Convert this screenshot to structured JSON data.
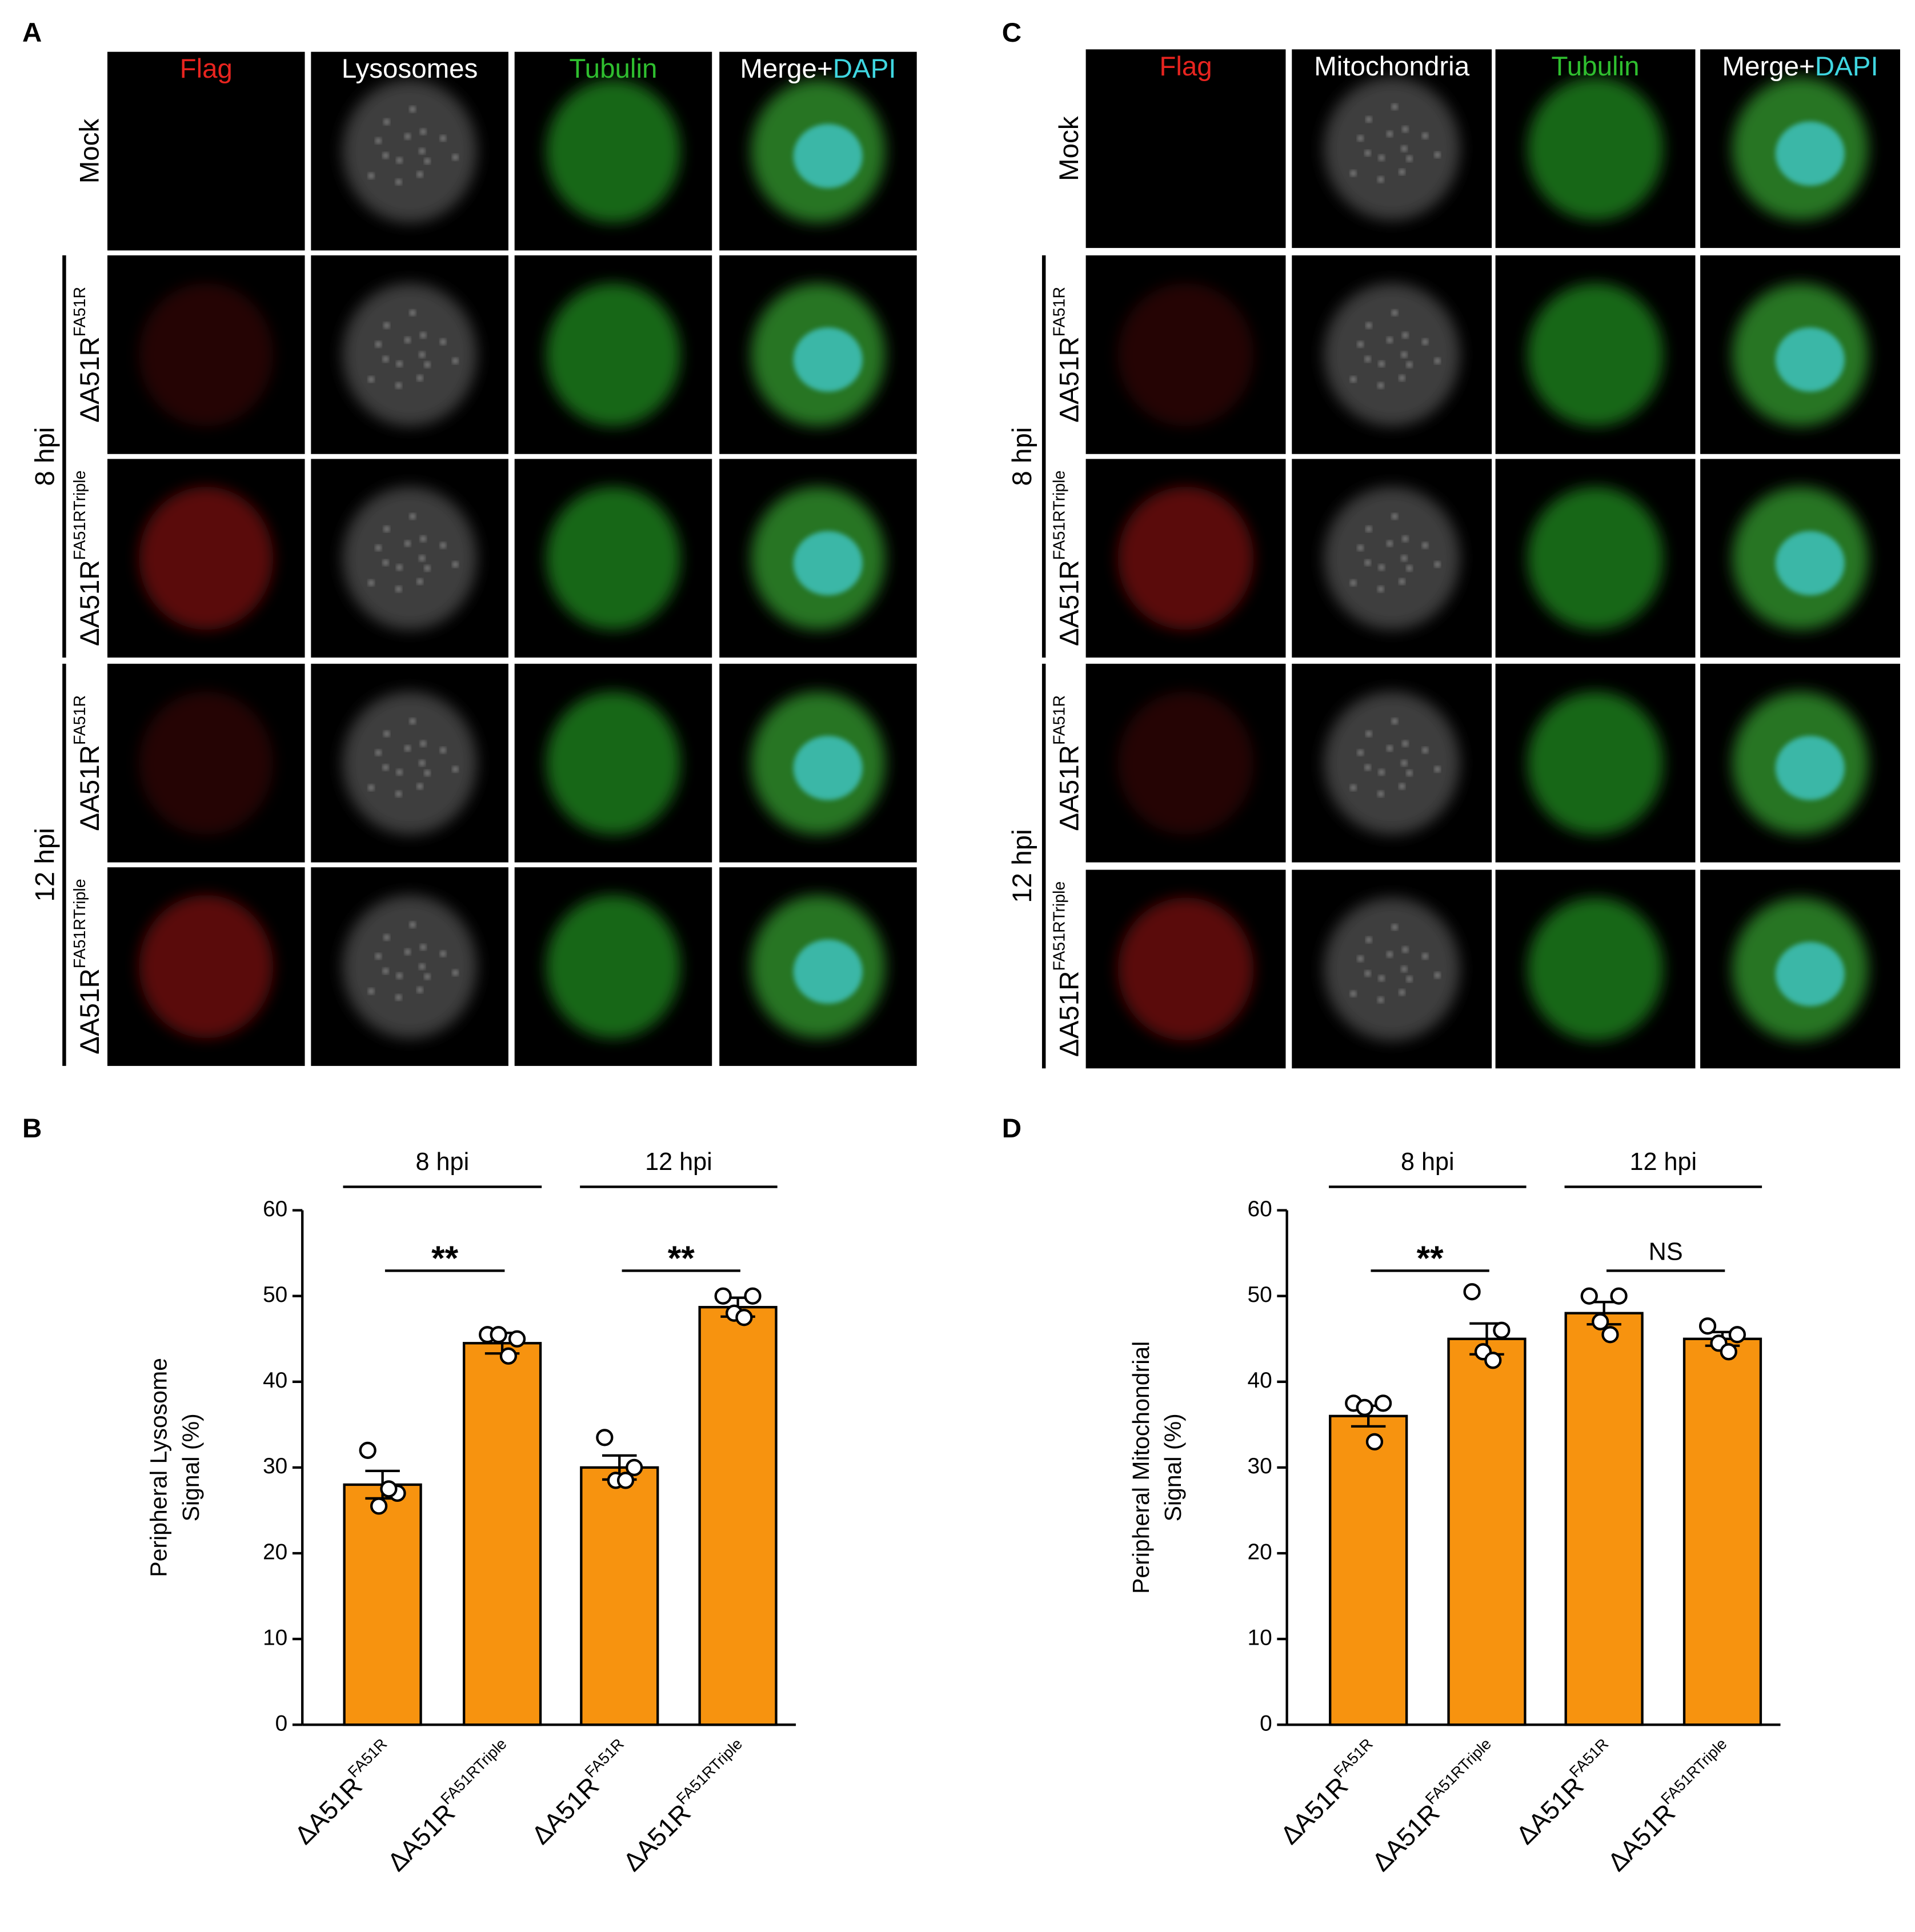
{
  "panel_labels": [
    "A",
    "B",
    "C",
    "D"
  ],
  "image_panels": [
    {
      "columns": [
        "Flag",
        "Lysosomes",
        "Tubulin",
        "Merge+"
      ],
      "merge_suffix": "DAPI",
      "column_colors": [
        "#e8241f",
        "#ffffff",
        "#2fbf2f",
        "#ffffff"
      ],
      "merge_suffix_color": "#3fd6e0",
      "rows": [
        "Mock",
        {
          "base": "ΔA51R",
          "sup": "FA51R"
        },
        {
          "base": "ΔA51R",
          "sup": "FA51RTriple"
        },
        {
          "base": "ΔA51R",
          "sup": "FA51R"
        },
        {
          "base": "ΔA51R",
          "sup": "FA51RTriple"
        }
      ],
      "groups": [
        "8 hpi",
        "12 hpi"
      ]
    },
    {
      "columns": [
        "Flag",
        "Mitochondria",
        "Tubulin",
        "Merge+"
      ],
      "merge_suffix": "DAPI",
      "column_colors": [
        "#e8241f",
        "#ffffff",
        "#2fbf2f",
        "#ffffff"
      ],
      "merge_suffix_color": "#3fd6e0",
      "rows": [
        "Mock",
        {
          "base": "ΔA51R",
          "sup": "FA51R"
        },
        {
          "base": "ΔA51R",
          "sup": "FA51RTriple"
        },
        {
          "base": "ΔA51R",
          "sup": "FA51R"
        },
        {
          "base": "ΔA51R",
          "sup": "FA51RTriple"
        }
      ],
      "groups": [
        "8 hpi",
        "12 hpi"
      ]
    }
  ],
  "chart_data": [
    {
      "type": "bar",
      "y_label": [
        "Peripheral Lysosome",
        "Signal (%)"
      ],
      "categories": [
        {
          "base": "ΔA51R",
          "sup": "FA51R"
        },
        {
          "base": "ΔA51R",
          "sup": "FA51RTriple"
        },
        {
          "base": "ΔA51R",
          "sup": "FA51R"
        },
        {
          "base": "ΔA51R",
          "sup": "FA51RTriple"
        }
      ],
      "values": [
        28,
        44.5,
        30,
        48.7
      ],
      "errors": [
        1.6,
        1.2,
        1.4,
        1.1
      ],
      "points": [
        [
          32,
          27,
          25.5,
          27.5
        ],
        [
          45.5,
          45,
          45.5,
          43
        ],
        [
          33.5,
          30,
          28.5,
          28.5
        ],
        [
          50,
          50,
          48,
          47.5
        ]
      ],
      "color": "#f7930f",
      "ylim": [
        0,
        60
      ],
      "yticks": [
        0,
        10,
        20,
        30,
        40,
        50,
        60
      ],
      "group_labels": [
        "8 hpi",
        "12 hpi"
      ],
      "significance": [
        "**",
        "**"
      ]
    },
    {
      "type": "bar",
      "y_label": [
        "Peripheral Mitochondrial",
        "Signal (%)"
      ],
      "categories": [
        {
          "base": "ΔA51R",
          "sup": "FA51R"
        },
        {
          "base": "ΔA51R",
          "sup": "FA51RTriple"
        },
        {
          "base": "ΔA51R",
          "sup": "FA51R"
        },
        {
          "base": "ΔA51R",
          "sup": "FA51RTriple"
        }
      ],
      "values": [
        36,
        45,
        48,
        45
      ],
      "errors": [
        1.2,
        1.8,
        1.3,
        0.8
      ],
      "points": [
        [
          37.5,
          37.5,
          37,
          33
        ],
        [
          50.5,
          46,
          43.5,
          42.5
        ],
        [
          50,
          50,
          47,
          45.5
        ],
        [
          46.5,
          45.5,
          44.5,
          43.5
        ]
      ],
      "color": "#f7930f",
      "ylim": [
        0,
        60
      ],
      "yticks": [
        0,
        10,
        20,
        30,
        40,
        50,
        60
      ],
      "group_labels": [
        "8 hpi",
        "12 hpi"
      ],
      "significance": [
        "**",
        "NS"
      ]
    }
  ]
}
